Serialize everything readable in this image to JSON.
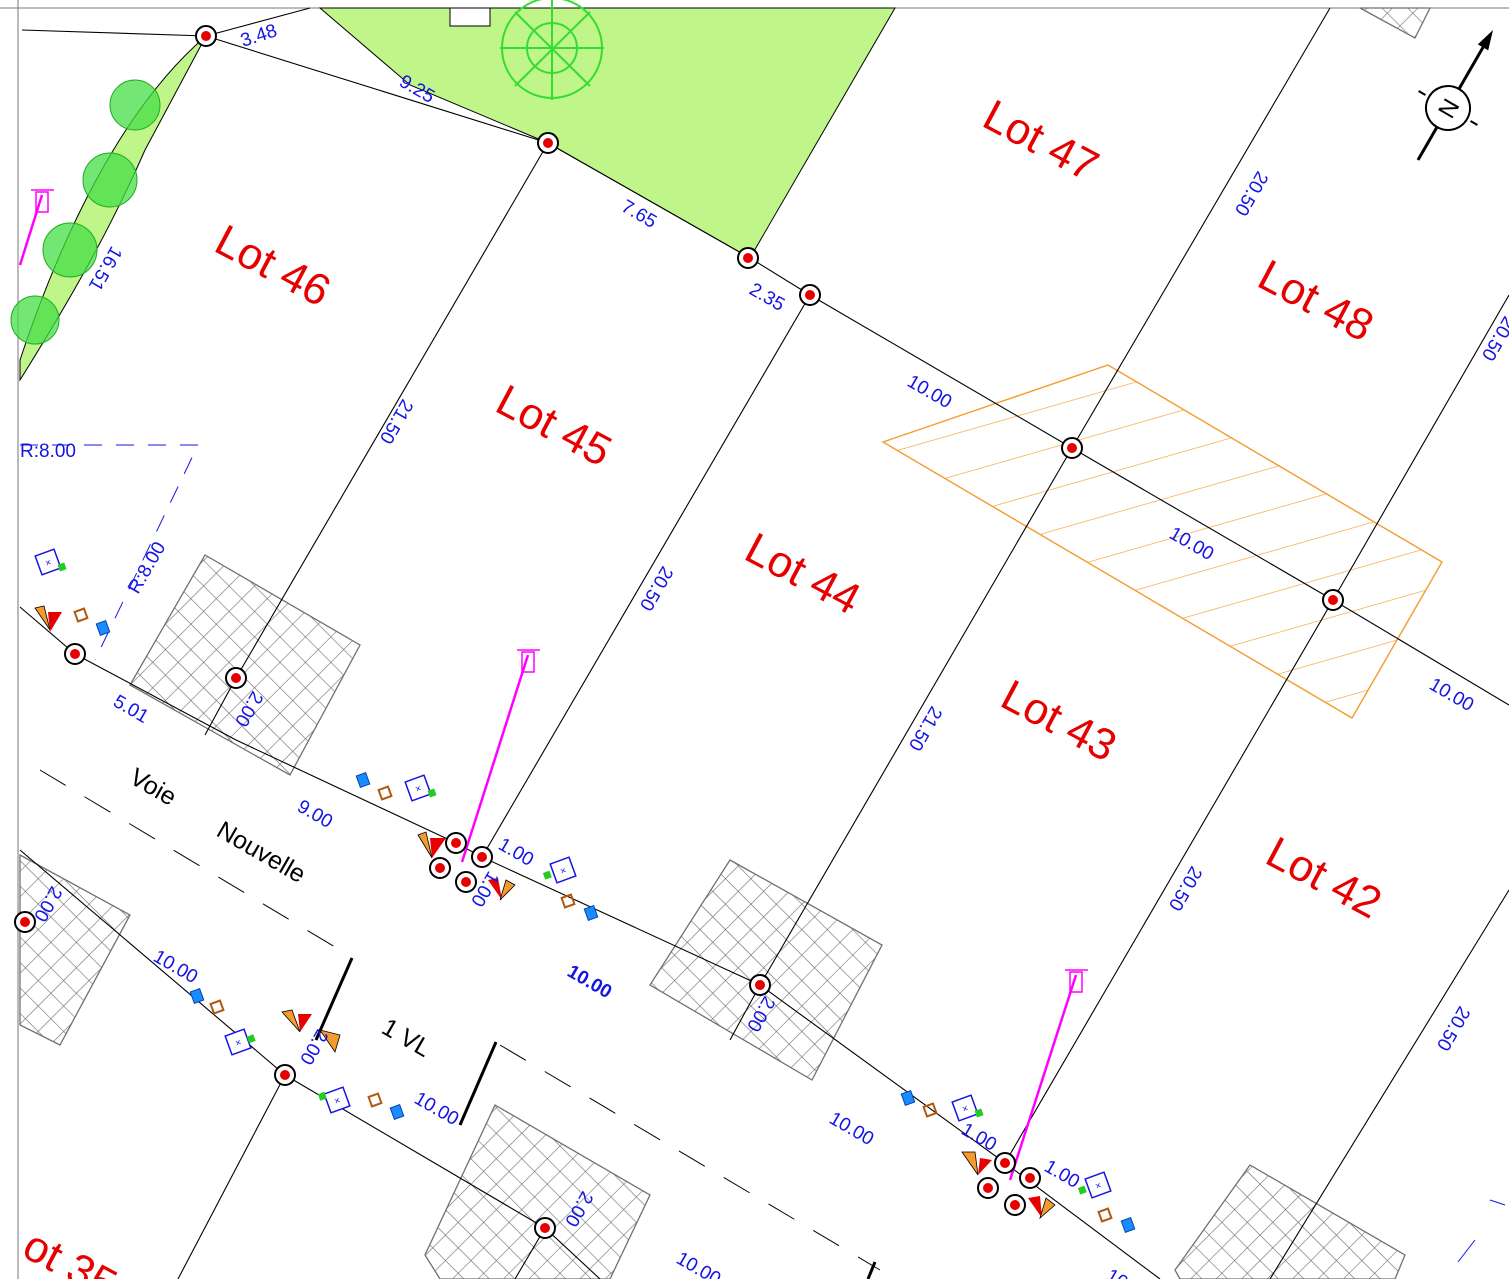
{
  "lots": [
    {
      "label": "Lot 47"
    },
    {
      "label": "Lot 46"
    },
    {
      "label": "Lot 48"
    },
    {
      "label": "Lot 45"
    },
    {
      "label": "Lot 44"
    },
    {
      "label": "Lot 43"
    },
    {
      "label": "Lot 42"
    },
    {
      "label": "ot 35"
    }
  ],
  "dimensions": [
    "3.48",
    "9.25",
    "7.65",
    "2.35",
    "16.51",
    "20.50",
    "20.50",
    "10.00",
    "10.00",
    "10.00",
    "21.50",
    "20.50",
    "21.50",
    "20.50",
    "5.01",
    "2.00",
    "9.00",
    "1.00",
    "1.00",
    "10.00",
    "2.00",
    "10.00",
    "10.00",
    "2.00",
    "10.00",
    "2.00",
    "10.00",
    "1.00",
    "1.00",
    "10.00",
    "20.50",
    "R:8.00",
    "R:8.00",
    "2.00"
  ],
  "road": {
    "voie": "Voie",
    "nouvelle": "Nouvelle",
    "parking": "1 VL"
  },
  "colors": {
    "lot_label": "#e60000",
    "dimension": "#1414e6",
    "green_space": "#c0f58a",
    "easement": "#f59a2e",
    "lamp": "#ff00ff",
    "boundary_marker": "#e60000"
  },
  "north_arrow": {
    "letter": "N"
  }
}
